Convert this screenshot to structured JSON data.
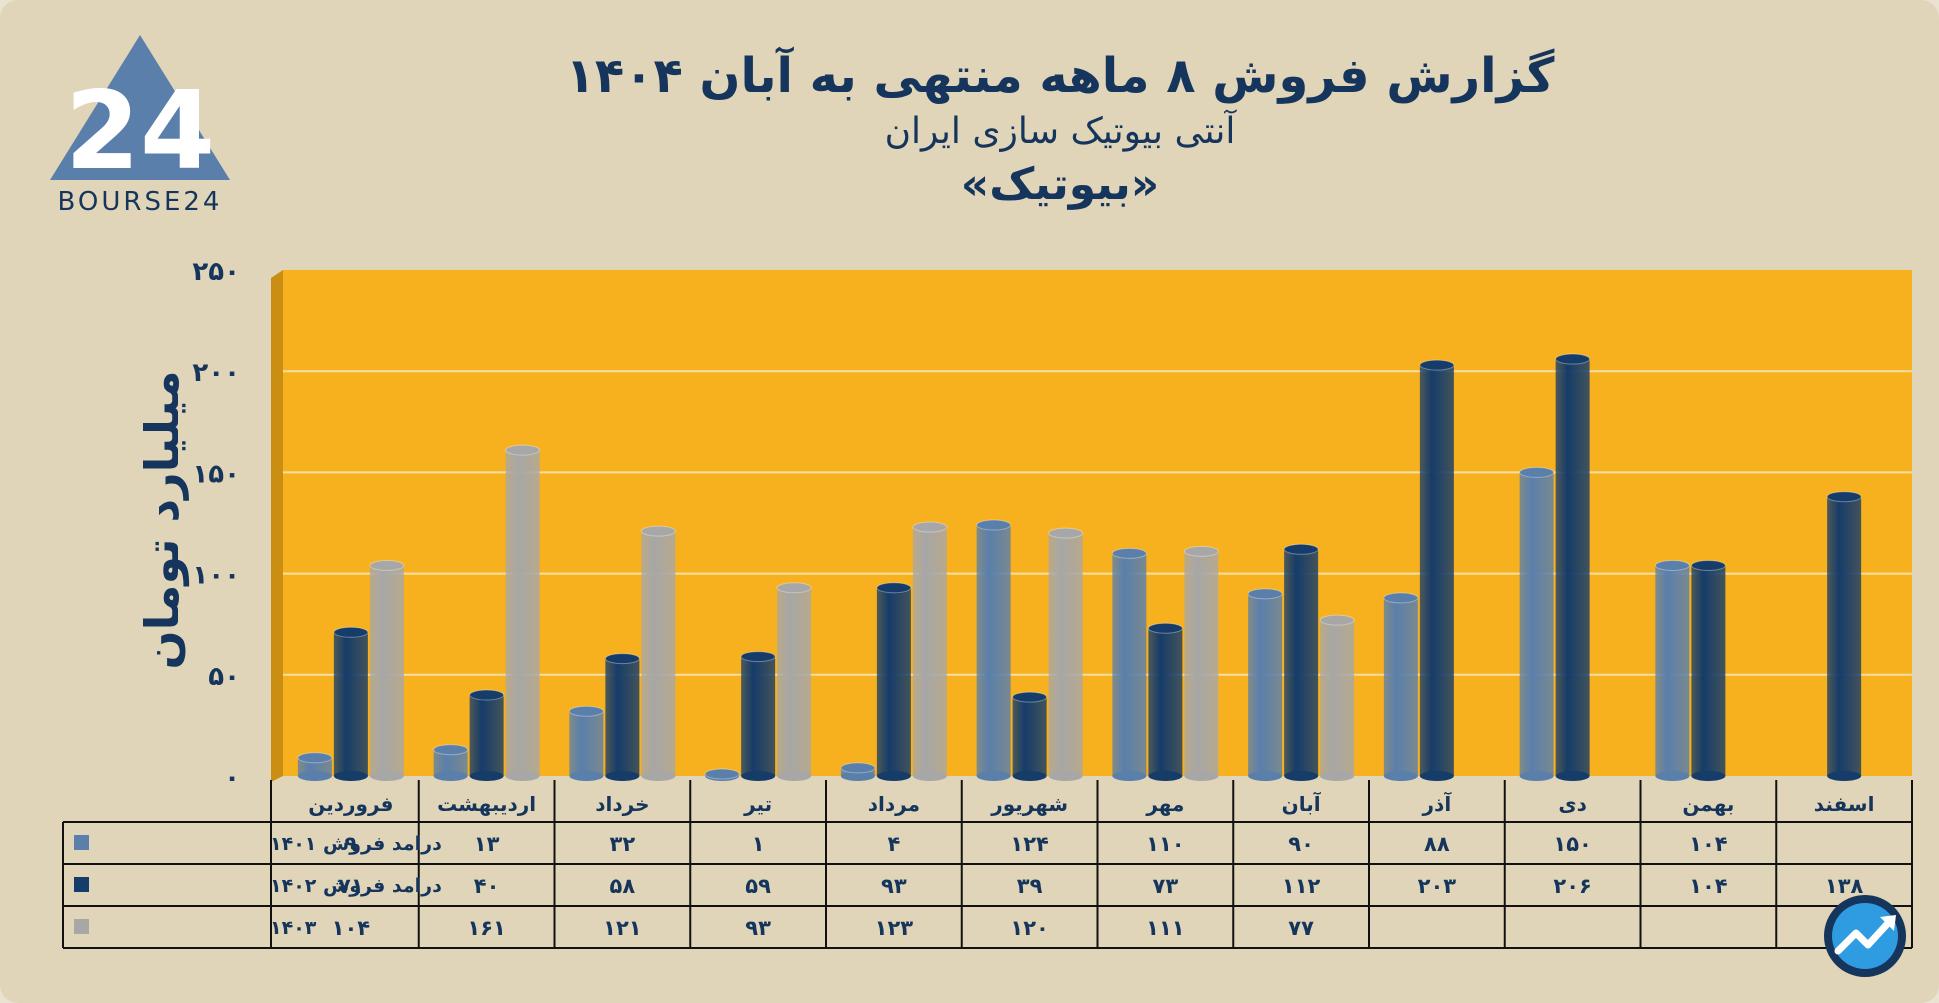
{
  "logo": {
    "text": "BOURSE24",
    "mark": "24"
  },
  "header": {
    "title": "گزارش  فروش ۸ ماهه منتهی به آبان ۱۴۰۴",
    "subtitle": "آنتی بیوتیک سازی ایران",
    "company": "«بیوتیک»"
  },
  "chart_data": {
    "type": "bar",
    "ylabel": "میلیارد تومان",
    "ylim": [
      0,
      250
    ],
    "yticks": [
      0,
      50,
      100,
      150,
      200,
      250
    ],
    "ytick_labels": [
      "۰",
      "۵۰",
      "۱۰۰",
      "۱۵۰",
      "۲۰۰",
      "۲۵۰"
    ],
    "grid": true,
    "categories": [
      "فروردین",
      "اردیبهشت",
      "خرداد",
      "تیر",
      "مرداد",
      "شهریور",
      "مهر",
      "آبان",
      "آذر",
      "دی",
      "بهمن",
      "اسفند"
    ],
    "series": [
      {
        "name": "درامد فروش ۱۴۰۱",
        "color": "#5a7fab",
        "values": [
          9,
          13,
          32,
          1,
          4,
          124,
          110,
          90,
          88,
          150,
          104,
          null
        ],
        "labels": [
          "۹",
          "۱۳",
          "۳۲",
          "۱",
          "۴",
          "۱۲۴",
          "۱۱۰",
          "۹۰",
          "۸۸",
          "۱۵۰",
          "۱۰۴",
          ""
        ]
      },
      {
        "name": "درامد فروش ۱۴۰۲",
        "color": "#163c69",
        "values": [
          71,
          40,
          58,
          59,
          93,
          39,
          73,
          112,
          203,
          206,
          104,
          138
        ],
        "labels": [
          "۷۱",
          "۴۰",
          "۵۸",
          "۵۹",
          "۹۳",
          "۳۹",
          "۷۳",
          "۱۱۲",
          "۲۰۳",
          "۲۰۶",
          "۱۰۴",
          "۱۳۸"
        ]
      },
      {
        "name": "۱۴۰۳",
        "color": "#a7a7a7",
        "values": [
          104,
          161,
          121,
          93,
          123,
          120,
          111,
          77,
          null,
          null,
          null,
          null
        ],
        "labels": [
          "۱۰۴",
          "۱۶۱",
          "۱۲۱",
          "۹۳",
          "۱۲۳",
          "۱۲۰",
          "۱۱۱",
          "۷۷",
          "",
          "",
          "",
          ""
        ]
      }
    ],
    "background_color": "#f7b11f"
  },
  "badge": {
    "icon": "trend-up-icon"
  }
}
